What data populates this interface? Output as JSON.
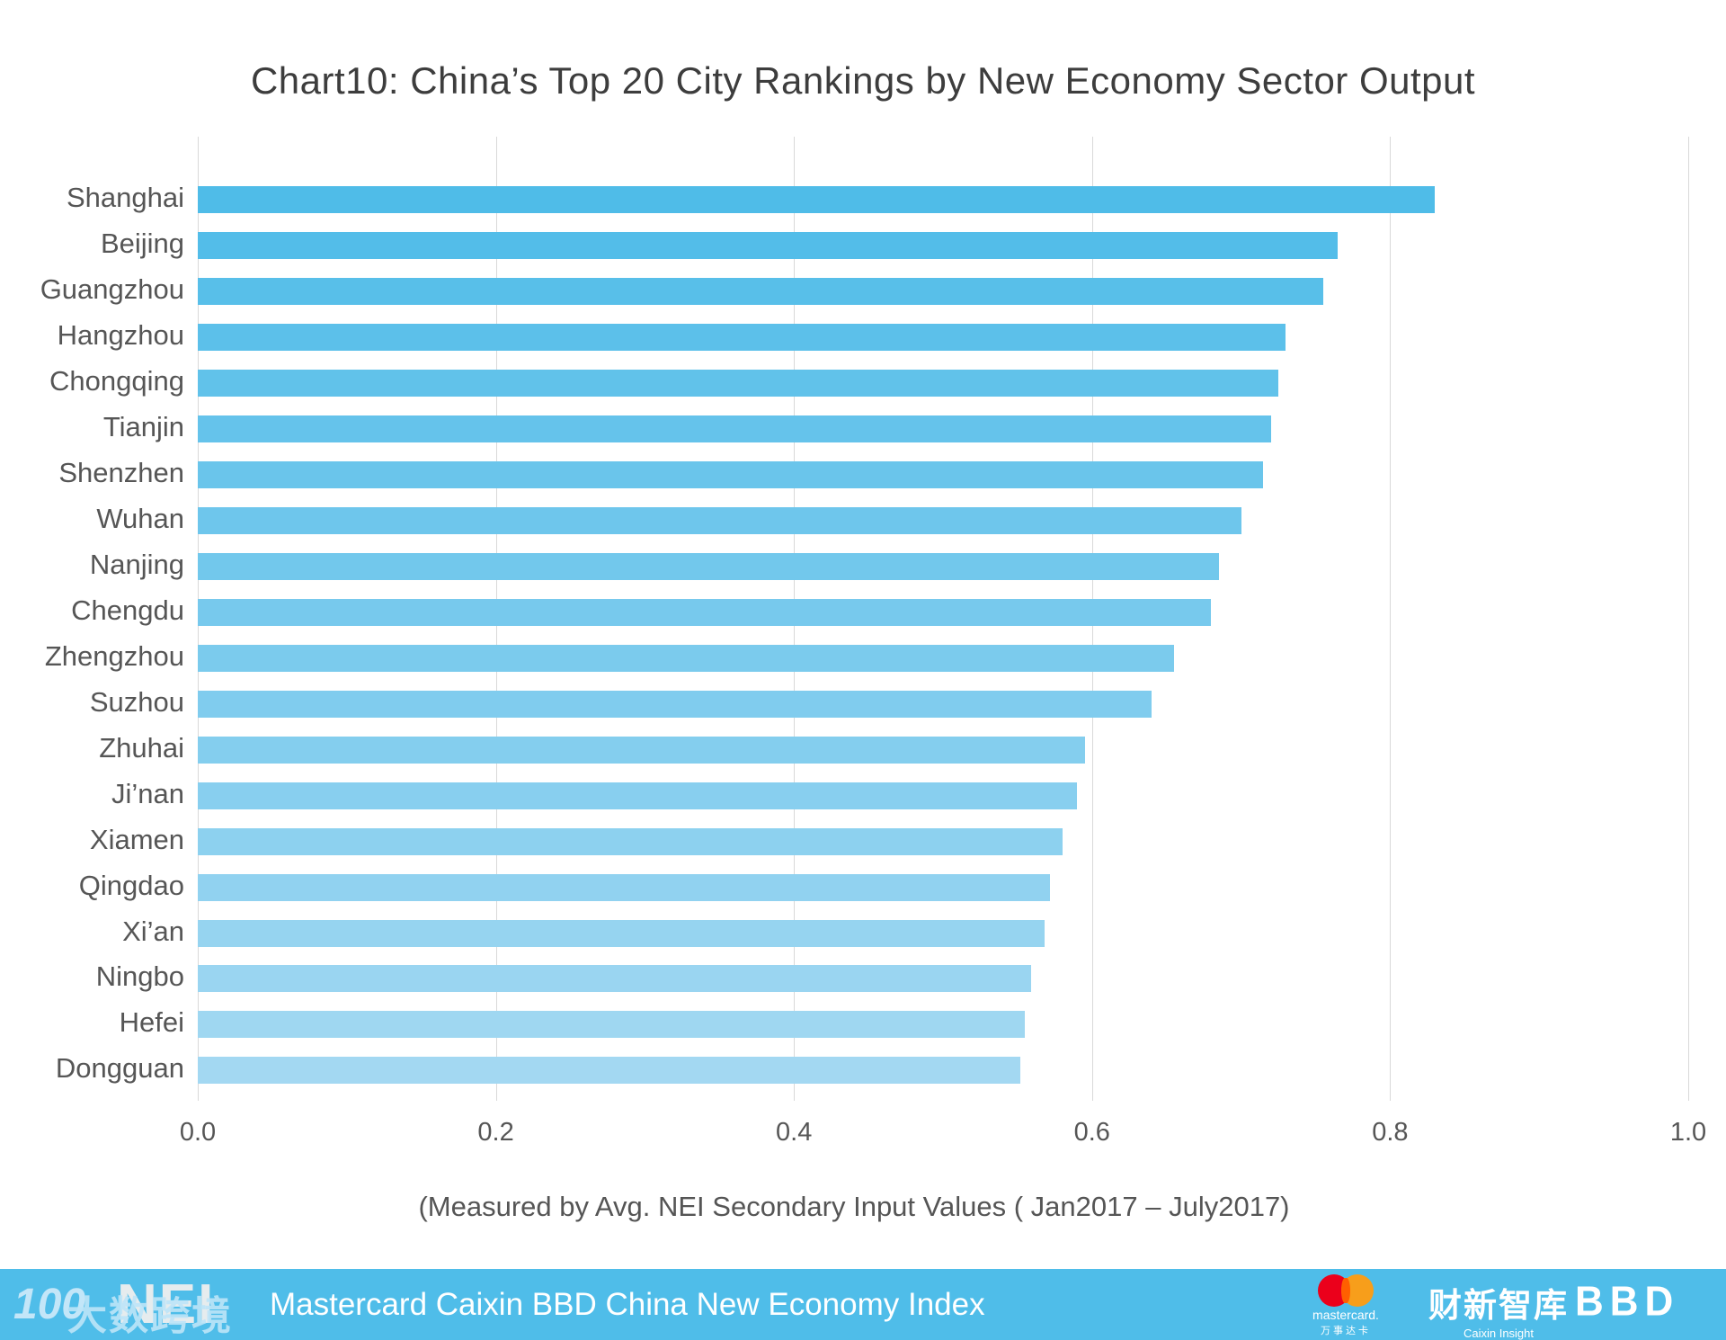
{
  "title": "Chart10：China’s Top 20 City Rankings by New Economy Sector Output",
  "chart_data": {
    "type": "bar",
    "orientation": "horizontal",
    "title": "Chart10：China’s Top 20 City Rankings by New Economy Sector Output",
    "categories": [
      "Shanghai",
      "Beijing",
      "Guangzhou",
      "Hangzhou",
      "Chongqing",
      "Tianjin",
      "Shenzhen",
      "Wuhan",
      "Nanjing",
      "Chengdu",
      "Zhengzhou",
      "Suzhou",
      "Zhuhai",
      "Ji’nan",
      "Xiamen",
      "Qingdao",
      "Xi’an",
      "Ningbo",
      "Hefei",
      "Dongguan"
    ],
    "values": [
      0.83,
      0.765,
      0.755,
      0.73,
      0.725,
      0.72,
      0.715,
      0.7,
      0.685,
      0.68,
      0.655,
      0.64,
      0.595,
      0.59,
      0.58,
      0.572,
      0.568,
      0.559,
      0.555,
      0.552
    ],
    "xlabel": "(Measured by Avg. NEI Secondary Input Values ( Jan2017 – July2017)",
    "x_ticks": [
      "0.0",
      "0.2",
      "0.4",
      "0.6",
      "0.8",
      "1.0"
    ],
    "xlim": [
      0,
      1
    ],
    "grid": "vertical-gridlines",
    "legend": "none",
    "bar_color_start": "#4FBCE8",
    "bar_color_end": "#A3D8F2",
    "gridline_color": "#D9D9D9",
    "label_color": "#565656",
    "title_color": "#3D3D3D"
  },
  "footer": {
    "bg_color": "#4FBDE9",
    "watermark_100": "100",
    "watermark_cn": "大数跨境",
    "watermark_nei": "NEI",
    "text": "Mastercard Caixin BBD China New Economy Index",
    "mastercard": {
      "label": "mastercard.",
      "label_cn": "万事达卡",
      "circle_left_color": "#EB001B",
      "circle_right_color": "#F79E1B",
      "overlap_color": "#FF5F00"
    },
    "caixin": {
      "label_cn": "财新智库",
      "label_en": "Caixin Insight"
    },
    "bbd": {
      "label": "BBD"
    }
  }
}
